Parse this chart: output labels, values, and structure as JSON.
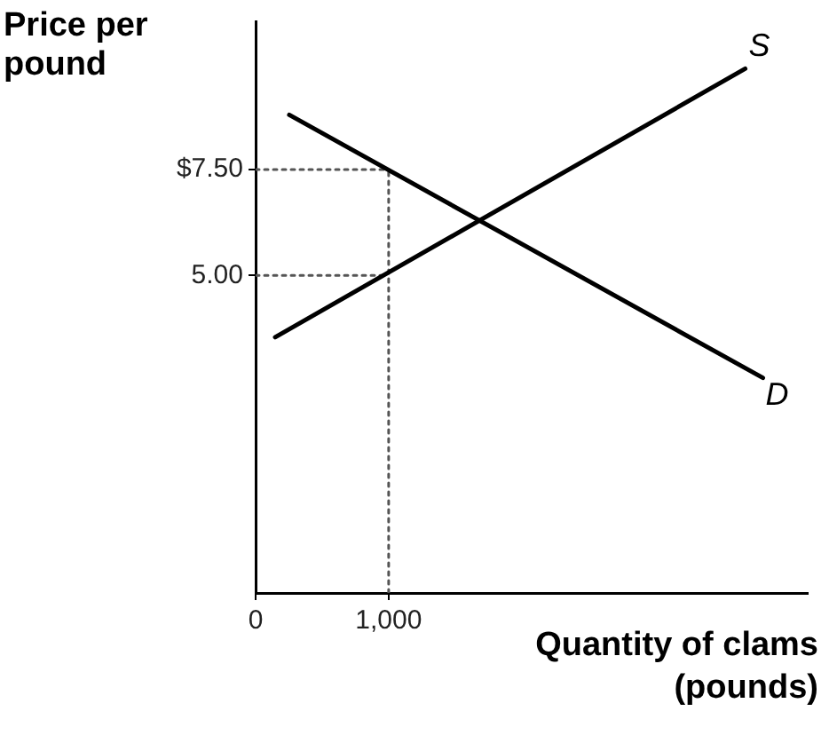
{
  "chart_data": {
    "type": "line",
    "xlabel": "Quantity of clams (pounds)",
    "ylabel": "Price per pound",
    "xlim": [
      0,
      4150
    ],
    "ylim": [
      -2.5,
      11
    ],
    "xticks": [
      {
        "value": 0,
        "label": "0"
      },
      {
        "value": 1000,
        "label": "1,000"
      }
    ],
    "yticks": [
      {
        "value": 5,
        "label": "5.00"
      },
      {
        "value": 7.5,
        "label": "$7.50"
      }
    ],
    "grid": false,
    "legend": false,
    "marker": "none",
    "series": [
      {
        "name": "S",
        "color": "#000000",
        "x": [
          147,
          3680
        ],
        "values": [
          3.54,
          9.88
        ]
      },
      {
        "name": "D",
        "color": "#000000",
        "x": [
          253,
          3813
        ],
        "values": [
          8.79,
          2.58
        ]
      },
      {
        "color": "#555555",
        "line_style": "dotted",
        "x": [
          0,
          1000
        ],
        "values": [
          7.5,
          7.5
        ]
      },
      {
        "color": "#555555",
        "line_style": "dotted",
        "x": [
          0,
          1000
        ],
        "values": [
          5,
          5
        ]
      },
      {
        "color": "#555555",
        "line_style": "dotted",
        "x": [
          1000,
          1000
        ],
        "values": [
          -2.5,
          7.5
        ]
      }
    ]
  }
}
